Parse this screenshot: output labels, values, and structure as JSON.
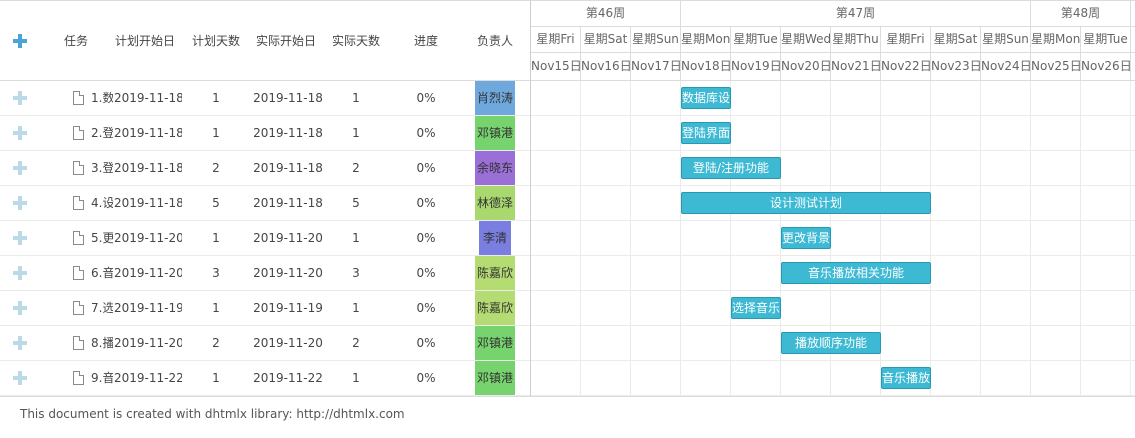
{
  "grid": {
    "columns": {
      "add": "",
      "task": "任务",
      "plan_start": "计划开始日",
      "plan_days": "计划天数",
      "actual_start": "实际开始日",
      "actual_days": "实际天数",
      "progress": "进度",
      "owner": "负责人"
    },
    "rows": [
      {
        "task": "1.数",
        "plan_start": "2019-11-18",
        "plan_days": "1",
        "actual_start": "2019-11-18",
        "actual_days": "1",
        "progress": "0%",
        "owner": "肖烈涛",
        "owner_color": "#6fa8dc"
      },
      {
        "task": "2.登",
        "plan_start": "2019-11-18",
        "plan_days": "1",
        "actual_start": "2019-11-18",
        "actual_days": "1",
        "progress": "0%",
        "owner": "邓镇港",
        "owner_color": "#77d36e"
      },
      {
        "task": "3.登",
        "plan_start": "2019-11-18",
        "plan_days": "2",
        "actual_start": "2019-11-18",
        "actual_days": "2",
        "progress": "0%",
        "owner": "余晓东",
        "owner_color": "#9a6fd8"
      },
      {
        "task": "4.设",
        "plan_start": "2019-11-18",
        "plan_days": "5",
        "actual_start": "2019-11-18",
        "actual_days": "5",
        "progress": "0%",
        "owner": "林德泽",
        "owner_color": "#a8d86e"
      },
      {
        "task": "5.更",
        "plan_start": "2019-11-20",
        "plan_days": "1",
        "actual_start": "2019-11-20",
        "actual_days": "1",
        "progress": "0%",
        "owner": "李清",
        "owner_color": "#7a7ee0"
      },
      {
        "task": "6.音",
        "plan_start": "2019-11-20",
        "plan_days": "3",
        "actual_start": "2019-11-20",
        "actual_days": "3",
        "progress": "0%",
        "owner": "陈嘉欣",
        "owner_color": "#b5dc72"
      },
      {
        "task": "7.选",
        "plan_start": "2019-11-19",
        "plan_days": "1",
        "actual_start": "2019-11-19",
        "actual_days": "1",
        "progress": "0%",
        "owner": "陈嘉欣",
        "owner_color": "#b5dc72"
      },
      {
        "task": "8.播",
        "plan_start": "2019-11-20",
        "plan_days": "2",
        "actual_start": "2019-11-20",
        "actual_days": "2",
        "progress": "0%",
        "owner": "邓镇港",
        "owner_color": "#77d36e"
      },
      {
        "task": "9.音",
        "plan_start": "2019-11-22",
        "plan_days": "1",
        "actual_start": "2019-11-22",
        "actual_days": "1",
        "progress": "0%",
        "owner": "邓镇港",
        "owner_color": "#77d36e"
      }
    ]
  },
  "timeline": {
    "weeks": [
      {
        "label": "第46周",
        "days": 3
      },
      {
        "label": "第47周",
        "days": 7
      },
      {
        "label": "第48周",
        "days": 2
      }
    ],
    "weekdays": [
      "星期Fri",
      "星期Sat",
      "星期Sun",
      "星期Mon",
      "星期Tue",
      "星期Wed",
      "星期Thu",
      "星期Fri",
      "星期Sat",
      "星期Sun",
      "星期Mon",
      "星期Tue"
    ],
    "dates": [
      "Nov15日",
      "Nov16日",
      "Nov17日",
      "Nov18日",
      "Nov19日",
      "Nov20日",
      "Nov21日",
      "Nov22日",
      "Nov23日",
      "Nov24日",
      "Nov25日",
      "Nov26日"
    ],
    "bars": [
      {
        "label": "数据库设",
        "start_day": 3,
        "days": 1
      },
      {
        "label": "登陆界面",
        "start_day": 3,
        "days": 1
      },
      {
        "label": "登陆/注册功能",
        "start_day": 3,
        "days": 2
      },
      {
        "label": "设计测试计划",
        "start_day": 3,
        "days": 5
      },
      {
        "label": "更改背景",
        "start_day": 5,
        "days": 1
      },
      {
        "label": "音乐播放相关功能",
        "start_day": 5,
        "days": 3
      },
      {
        "label": "选择音乐",
        "start_day": 4,
        "days": 1
      },
      {
        "label": "播放顺序功能",
        "start_day": 5,
        "days": 2
      },
      {
        "label": "音乐播放",
        "start_day": 7,
        "days": 1
      }
    ]
  },
  "footer": {
    "text": "This document is created with dhtmlx library: http://dhtmlx.com"
  },
  "colors": {
    "bar": "#3db9d3",
    "bar_border": "#2898b0",
    "add_icon": "#4aa5d6"
  }
}
